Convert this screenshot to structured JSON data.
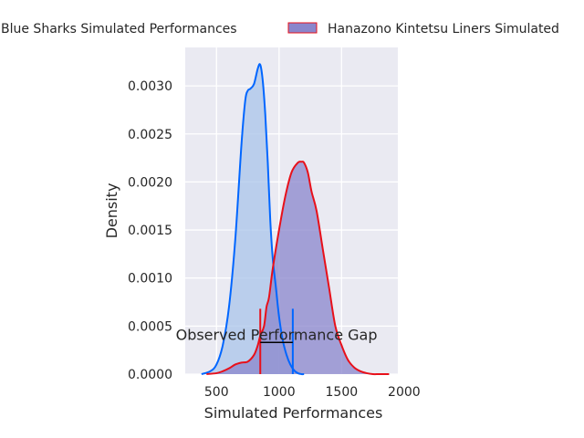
{
  "chart_data": {
    "type": "area",
    "xlabel": "Simulated Performances",
    "ylabel": "Density",
    "xlim": [
      250,
      1950
    ],
    "ylim": [
      0,
      0.0034
    ],
    "x_ticks": [
      500,
      1000,
      1500,
      2000
    ],
    "y_ticks": [
      0.0,
      0.0005,
      0.001,
      0.0015,
      0.002,
      0.0025,
      0.003
    ],
    "x_tick_labels": [
      "500",
      "1000",
      "1500",
      "2000"
    ],
    "y_tick_labels": [
      "0.0000",
      "0.0005",
      "0.0010",
      "0.0015",
      "0.0020",
      "0.0025",
      "0.0030"
    ],
    "grid": true,
    "legend_placement": "top-center, outside",
    "series": [
      {
        "name": "Blue Sharks Simulated Performances",
        "color": "#0066ff",
        "fill": "#aac4ea",
        "x": [
          380,
          450,
          500,
          550,
          600,
          650,
          700,
          730,
          750,
          770,
          800,
          830,
          850,
          870,
          890,
          910,
          930,
          950,
          975,
          1000,
          1030,
          1060,
          1090,
          1120,
          1150,
          1180,
          1200
        ],
        "y": [
          0.0,
          3e-05,
          0.0001,
          0.0003,
          0.0007,
          0.0014,
          0.0024,
          0.00285,
          0.00295,
          0.00297,
          0.00302,
          0.00318,
          0.00322,
          0.00305,
          0.0027,
          0.0022,
          0.0016,
          0.0012,
          0.0009,
          0.0006,
          0.00035,
          0.0002,
          0.0001,
          4e-05,
          1e-05,
          0.0,
          0.0
        ]
      },
      {
        "name": "Hanazono Kintetsu Liners Simulated",
        "color": "#e8101a",
        "fill": "#8a86cc",
        "x": [
          420,
          500,
          550,
          600,
          650,
          700,
          750,
          800,
          830,
          850,
          880,
          900,
          920,
          950,
          1000,
          1050,
          1100,
          1150,
          1180,
          1200,
          1230,
          1260,
          1300,
          1350,
          1400,
          1450,
          1500,
          1550,
          1600,
          1650,
          1700,
          1750,
          1800,
          1880
        ],
        "y": [
          0.0,
          1e-05,
          3e-05,
          6e-05,
          0.0001,
          0.00012,
          0.00013,
          0.0002,
          0.0003,
          0.0004,
          0.0005,
          0.0007,
          0.0008,
          0.0011,
          0.0015,
          0.00185,
          0.0021,
          0.0022,
          0.00221,
          0.0022,
          0.0021,
          0.0019,
          0.0017,
          0.0013,
          0.0009,
          0.0005,
          0.0003,
          0.00015,
          7e-05,
          3e-05,
          1e-05,
          0.0,
          0.0,
          0.0
        ]
      }
    ],
    "annotation": {
      "text": "Observed Performance Gap",
      "x_start": 850,
      "x_end": 1110,
      "y": 0.00033,
      "marker_top": 0.00068
    }
  }
}
